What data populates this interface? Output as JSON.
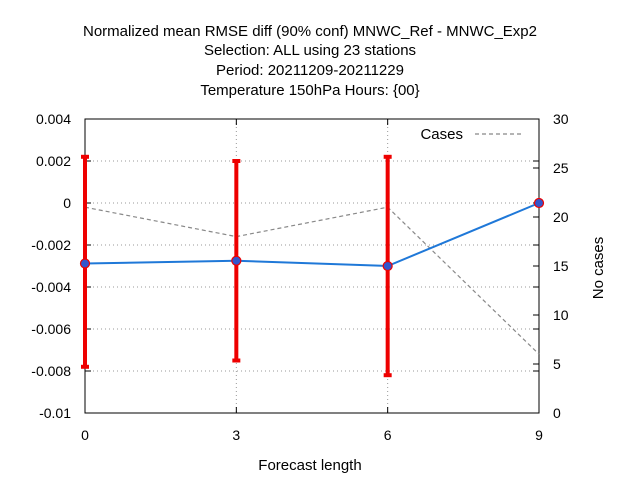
{
  "chart_data": {
    "type": "line",
    "title_lines": [
      "Normalized mean RMSE diff (90% conf) MNWC_Ref - MNWC_Exp2",
      "Selection: ALL using    23 stations",
      "Period: 20211209-20211229",
      "Temperature 150hPa   Hours: {00}"
    ],
    "xlabel": "Forecast length",
    "ylabel": "",
    "y2label": "No cases",
    "xlim": [
      0,
      9
    ],
    "ylim": [
      -0.01,
      0.004
    ],
    "y2lim": [
      0,
      30
    ],
    "x_ticks": [
      "0",
      "3",
      "6",
      "9"
    ],
    "y_ticks": [
      "0.004",
      "0.002",
      "0",
      "-0.002",
      "-0.004",
      "-0.006",
      "-0.008",
      "-0.01"
    ],
    "y2_ticks": [
      "30",
      "25",
      "20",
      "15",
      "10",
      "5",
      "0"
    ],
    "grid": true,
    "legend_placement": "top-right",
    "series": [
      {
        "color": "#1f78d8",
        "marker_color": "#3355cc",
        "x": [
          0,
          3,
          6,
          9
        ],
        "y": [
          -0.00288,
          -0.00275,
          -0.003,
          0.0
        ],
        "error_bars": {
          "color": "#ee0000",
          "low": [
            -0.0078,
            -0.0075,
            -0.0082,
            0.0
          ],
          "high": [
            0.0022,
            0.002,
            0.0022,
            0.0
          ]
        }
      },
      {
        "name": "Cases",
        "axis": "y2",
        "style": "dashed",
        "color": "#888888",
        "x": [
          0,
          3,
          6,
          9
        ],
        "y": [
          21,
          18,
          21,
          6
        ]
      }
    ]
  }
}
